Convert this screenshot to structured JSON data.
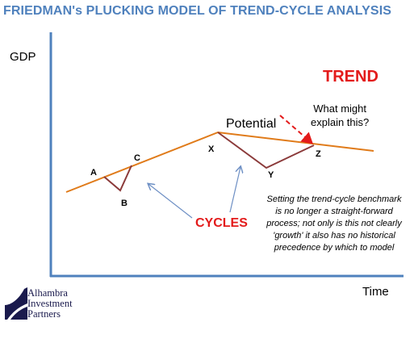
{
  "title": "FRIEDMAN's PLUCKING MODEL OF TREND-CYCLE ANALYSIS",
  "y_axis_label": "GDP",
  "x_axis_label": "Time",
  "trend_label": "TREND",
  "cycles_label": "CYCLES",
  "potential_label": "Potential",
  "question_lines": [
    "What might",
    "explain this?"
  ],
  "points": {
    "A": "A",
    "B": "B",
    "C": "C",
    "X": "X",
    "Y": "Y",
    "Z": "Z"
  },
  "note_lines": [
    "Setting the trend-cycle benchmark",
    "is no longer a straight-forward",
    "process; not only is this not clearly",
    "'growth' it also has no historical",
    "precedence  by which to model"
  ],
  "logo_lines": [
    "Alhambra",
    "Investment",
    "Partners"
  ],
  "colors": {
    "title": "#4f81bd",
    "trend_line": "#e07b1a",
    "cycle_line": "#8b3a3a",
    "axis": "#4f81bd",
    "accent_red": "#e31b1b",
    "arrow": "#6d8fc4",
    "logo_navy": "#1a1a4d"
  }
}
